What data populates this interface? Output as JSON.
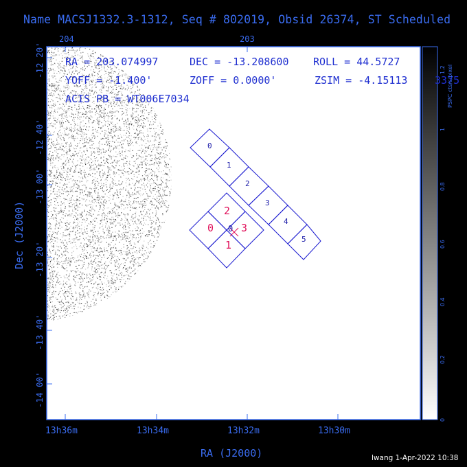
{
  "title": "Name MACSJ1332.3-1312, Seq # 802019, Obsid 26374, ST Scheduled",
  "top_ticks": [
    "204",
    "203"
  ],
  "left_ticks": [
    "-12 20'",
    "-12 40'",
    "-13 00'",
    "-13 20'",
    "-13 40'",
    "-14 00'"
  ],
  "bottom_ticks": [
    "13h36m",
    "13h34m",
    "13h32m",
    "13h30m"
  ],
  "xlabel": "RA (J2000)",
  "ylabel": "Dec (J2000)",
  "info": {
    "ra": "RA = 203.074997",
    "dec": "DEC = -13.208600",
    "roll": "ROLL = 44.5727",
    "yoff": "YOFF = -1.400'",
    "zoff": "ZOFF = 0.0000'",
    "zsim": "ZSIM = -4.15113",
    "zsim_overflow": "3375",
    "acis": "ACIS PB = WT006E7034"
  },
  "colorbar": {
    "label": "PSPC cts/s/pixel",
    "ticks": [
      "0",
      "0.2",
      "0.4",
      "0.6",
      "0.8",
      "1",
      "1.2"
    ]
  },
  "chips_s": [
    "0",
    "1",
    "2",
    "3",
    "4",
    "5"
  ],
  "chips_i": [
    "0",
    "1",
    "2",
    "3"
  ],
  "aimpoint_label": "0",
  "footer": "lwang  1-Apr-2022 10:38",
  "colors": {
    "axis": "#3a6cf0",
    "chip_s": "#1a1aa8",
    "chip_i": "#e0105a",
    "chip_outline": "#1a1ad0"
  }
}
